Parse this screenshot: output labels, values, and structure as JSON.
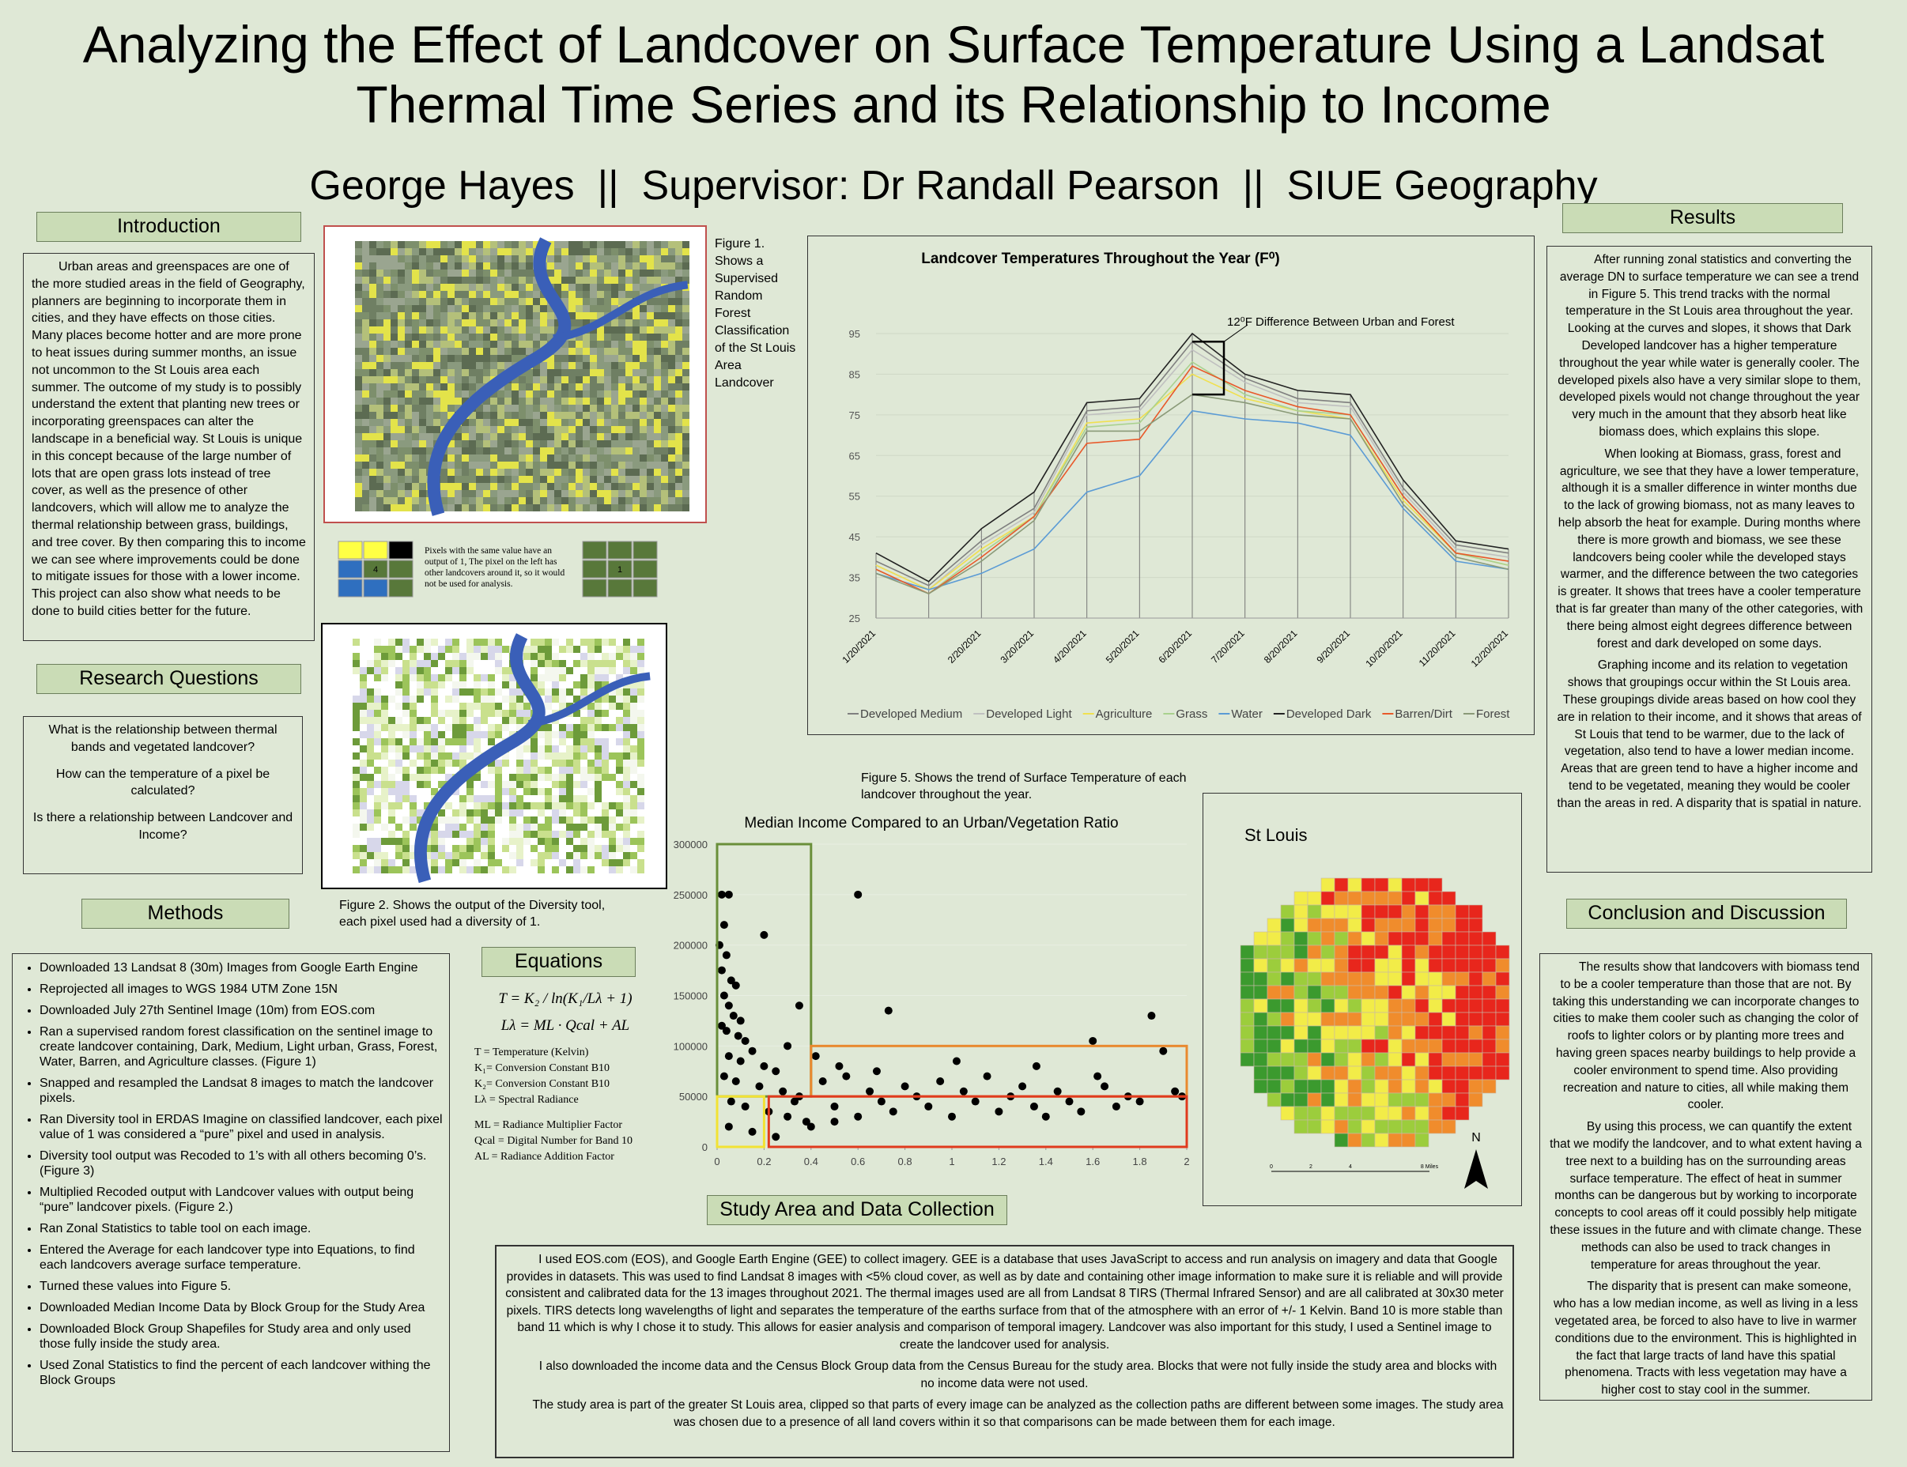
{
  "header": {
    "title": [
      "Analyzing the Effect of Landcover on Surface Temperature Using a Landsat",
      "Thermal Time Series and its Relationship to Income"
    ],
    "authors": "George Hayes  ||  Supervisor: Dr Randall Pearson  ||  SIUE Geography"
  },
  "introduction": {
    "heading": "Introduction",
    "text": "Urban areas and greenspaces are one of the more studied areas in the field of Geography, planners are beginning to incorporate them in cities, and they have effects on those cities. Many places become hotter and are more prone to heat issues during summer months, an issue not uncommon to the St Louis area each summer. The outcome of my study is to possibly understand the extent that planting new trees or incorporating greenspaces can alter the landscape in a beneficial way. St Louis is unique in this concept because of the large number of lots that are open grass lots instead of tree cover, as well as the presence of other landcovers, which will allow me to analyze the thermal relationship between grass, buildings, and tree cover. By then comparing this to income we can see where improvements could be done to mitigate issues for those with a lower income. This project can also show what needs to be done to build cities better for the future."
  },
  "research_questions": {
    "heading": "Research Questions",
    "items": [
      "What is the relationship between thermal bands and vegetated landcover?",
      "How can the temperature of a pixel be calculated?",
      "Is there a relationship between Landcover and Income?"
    ]
  },
  "methods": {
    "heading": "Methods",
    "items": [
      "Downloaded 13 Landsat 8 (30m) Images from Google Earth Engine",
      "Reprojected all images to WGS 1984 UTM Zone 15N",
      "Downloaded July 27th Sentinel Image (10m) from EOS.com",
      "Ran a supervised random forest classification on the sentinel image to create landcover containing, Dark, Medium, Light urban, Grass, Forest, Water, Barren, and Agriculture classes. (Figure 1)",
      "Snapped and resampled the Landsat 8 images to match the landcover pixels.",
      "Ran Diversity tool in ERDAS Imagine on classified landcover, each pixel value of 1 was considered a “pure” pixel and used in analysis.",
      "Diversity tool output was Recoded to 1’s with all others becoming 0’s. (Figure 3)",
      "Multiplied Recoded output with Landcover values with output being “pure” landcover pixels. (Figure 2.)",
      "Ran Zonal Statistics to table tool on each image.",
      "Entered the Average for each landcover type into Equations, to find each landcovers average surface temperature.",
      "Turned these values into Figure 5.",
      "Downloaded Median Income Data by Block Group for the Study Area",
      "Downloaded Block Group Shapefiles for Study area and only used those fully inside the study area.",
      "Used Zonal Statistics to find the percent of each landcover withing the Block Groups"
    ]
  },
  "figure1": {
    "caption": "Figure 1. Shows a Supervised Random Forest Classification of the St Louis Area Landcover"
  },
  "diversity": {
    "left_cell": "4",
    "note": "Pixels with the same value have an output of 1, The pixel on the left has other landcovers around it, so it would not be used for analysis.",
    "right_cell": "1"
  },
  "figure2": {
    "caption": "Figure 2. Shows the output of the Diversity tool, each pixel used had a diversity of 1."
  },
  "equations": {
    "heading": "Equations",
    "formulas": [
      "T = K₂ / ln(K₁/Lλ + 1)",
      "Lλ = ML · Qcal + AL"
    ],
    "legend": [
      "T = Temperature (Kelvin)",
      "K₁= Conversion Constant B10",
      "K₂= Conversion Constant B10",
      "Lλ = Spectral Radiance",
      "ML = Radiance Multiplier Factor",
      "Qcal = Digital Number for Band 10",
      "AL = Radiance Addition Factor"
    ]
  },
  "chart_data": [
    {
      "type": "line",
      "title": "Landcover Temperatures Throughout the Year (F⁰)",
      "annotation": "12⁰F Difference Between Urban and Forest",
      "categories": [
        "1/20/2021",
        null,
        "2/20/2021",
        "3/20/2021",
        "4/20/2021",
        "5/20/2021",
        "6/20/2021",
        "7/20/2021",
        "8/20/2021",
        "9/20/2021",
        "10/20/2021",
        "11/20/2021",
        "12/20/2021"
      ],
      "ylim": [
        25,
        95
      ],
      "yticks": [
        25,
        35,
        45,
        55,
        65,
        75,
        85,
        95
      ],
      "grid": true,
      "series": [
        {
          "name": "Developed Medium",
          "color": "#7f7f7f",
          "values": [
            39,
            33,
            44,
            52,
            76,
            77,
            93,
            84,
            79,
            78,
            57,
            43,
            41
          ]
        },
        {
          "name": "Developed Light",
          "color": "#c0c0c0",
          "values": [
            38,
            32,
            43,
            51,
            75,
            76,
            91,
            83,
            78,
            77,
            56,
            42,
            40
          ]
        },
        {
          "name": "Agriculture",
          "color": "#f0e050",
          "values": [
            38,
            32,
            42,
            50,
            73,
            74,
            85,
            79,
            76,
            74,
            54,
            41,
            38
          ]
        },
        {
          "name": "Grass",
          "color": "#a9d18e",
          "values": [
            37,
            31,
            41,
            50,
            72,
            73,
            88,
            80,
            76,
            75,
            55,
            41,
            38
          ]
        },
        {
          "name": "Water",
          "color": "#5b9bd5",
          "values": [
            36,
            32,
            36,
            42,
            56,
            60,
            76,
            74,
            73,
            70,
            52,
            39,
            37
          ]
        },
        {
          "name": "Developed Dark",
          "color": "#222222",
          "values": [
            41,
            34,
            47,
            56,
            78,
            79,
            95,
            85,
            81,
            80,
            59,
            44,
            42
          ]
        },
        {
          "name": "Barren/Dirt",
          "color": "#e8592a",
          "values": [
            37,
            31,
            40,
            50,
            68,
            69,
            87,
            81,
            77,
            75,
            55,
            41,
            39
          ]
        },
        {
          "name": "Forest",
          "color": "#8a9a78",
          "values": [
            36,
            31,
            39,
            49,
            71,
            71,
            80,
            78,
            75,
            74,
            53,
            40,
            37
          ]
        }
      ],
      "caption": "Figure 5. Shows the trend of Surface Temperature of each landcover throughout the year."
    },
    {
      "type": "scatter",
      "title": "Median Income Compared to an Urban/Vegetation Ratio",
      "color": "#000000",
      "xlim": [
        0,
        2
      ],
      "xticks": [
        0,
        0.2,
        0.4,
        0.6,
        0.8,
        1,
        1.2,
        1.4,
        1.6,
        1.8,
        2
      ],
      "ylim": [
        0,
        300000
      ],
      "yticks": [
        0,
        50000,
        100000,
        150000,
        200000,
        250000,
        300000
      ],
      "regions": [
        {
          "color": "#6a8f3a",
          "xlim": [
            0,
            0.4
          ],
          "ylim": [
            50000,
            300000
          ]
        },
        {
          "color": "#e9892f",
          "xlim": [
            0.4,
            2
          ],
          "ylim": [
            50000,
            100000
          ]
        },
        {
          "color": "#e03a1e",
          "xlim": [
            0.22,
            2
          ],
          "ylim": [
            0,
            50000
          ]
        },
        {
          "color": "#f2e234",
          "xlim": [
            0,
            0.2
          ],
          "ylim": [
            0,
            50000
          ]
        }
      ],
      "x": [
        0.02,
        0.05,
        0.03,
        0.01,
        0.04,
        0.02,
        0.06,
        0.08,
        0.03,
        0.05,
        0.07,
        0.1,
        0.02,
        0.04,
        0.09,
        0.12,
        0.2,
        0.6,
        0.73,
        0.35,
        0.3,
        0.15,
        0.05,
        0.1,
        0.2,
        0.25,
        0.03,
        0.08,
        0.18,
        0.28,
        0.35,
        0.06,
        0.12,
        0.22,
        0.3,
        0.38,
        0.05,
        0.15,
        0.25,
        0.33,
        0.45,
        0.5,
        0.55,
        0.6,
        0.65,
        0.7,
        0.75,
        0.8,
        0.85,
        0.9,
        0.95,
        1.0,
        1.05,
        1.1,
        1.15,
        1.2,
        1.25,
        1.3,
        1.35,
        1.4,
        1.45,
        1.5,
        1.55,
        1.6,
        1.65,
        1.7,
        1.75,
        1.8,
        1.85,
        1.9,
        1.95,
        1.98,
        0.42,
        0.52,
        0.68,
        1.02,
        1.36,
        1.62,
        0.4,
        0.5
      ],
      "values": [
        250000,
        250000,
        220000,
        200000,
        190000,
        175000,
        165000,
        160000,
        150000,
        140000,
        130000,
        125000,
        120000,
        115000,
        110000,
        105000,
        210000,
        250000,
        135000,
        140000,
        100000,
        95000,
        90000,
        85000,
        80000,
        75000,
        70000,
        65000,
        60000,
        55000,
        50000,
        45000,
        40000,
        35000,
        30000,
        25000,
        20000,
        15000,
        10000,
        45000,
        65000,
        40000,
        70000,
        30000,
        55000,
        45000,
        35000,
        60000,
        50000,
        40000,
        65000,
        30000,
        55000,
        45000,
        70000,
        35000,
        50000,
        60000,
        40000,
        30000,
        55000,
        45000,
        35000,
        105000,
        60000,
        40000,
        50000,
        45000,
        130000,
        95000,
        55000,
        50000,
        90000,
        80000,
        75000,
        85000,
        80000,
        70000,
        20000,
        25000
      ]
    }
  ],
  "map": {
    "title": "St Louis",
    "north": "N",
    "scale_labels": [
      "0",
      "2",
      "4",
      "8 Miles"
    ]
  },
  "results": {
    "heading": "Results",
    "paragraphs": [
      "After running zonal statistics and converting the average DN to surface temperature we can see a trend in Figure 5. This trend tracks with the normal temperature in the St Louis area throughout the year. Looking at the curves and slopes, it shows that Dark Developed landcover has a higher temperature throughout the year while water is generally cooler. The developed pixels also have a very similar slope to them, developed pixels would not change throughout the year very much in the amount that they absorb heat like biomass does, which explains this slope.",
      "When looking at Biomass, grass, forest and agriculture, we see that they have a lower temperature, although it is a smaller difference in winter months due to the lack of growing biomass, not as many leaves to help absorb the heat for example. During months where there is more growth and biomass, we see these landcovers being cooler while the developed stays warmer, and the difference between the two categories is greater. It shows that trees have a cooler temperature that is far greater than many of the other categories, with there being almost eight degrees difference between forest and dark developed on some days.",
      "Graphing income and its relation to vegetation shows that groupings occur within the St Louis area. These groupings divide areas based on how cool they are in relation to their income, and it shows that areas of St Louis that tend to be warmer, due to the lack of vegetation, also tend to have a lower median income. Areas that are green tend to have a higher income and tend to be vegetated, meaning they would be cooler than the areas in red. A disparity that is spatial in nature."
    ]
  },
  "conclusion": {
    "heading": "Conclusion and Discussion",
    "paragraphs": [
      "The results show that landcovers with biomass tend to be a cooler temperature than those that are not. By taking this understanding we can incorporate changes to cities to make them cooler such as changing the color of roofs to lighter colors or by planting more trees and having green spaces nearby buildings to help provide a cooler environment to spend time. Also providing recreation and nature to cities, all while making them cooler.",
      "By using this process, we can quantify the extent that we modify the landcover, and to what extent having a tree next to a building has on the surrounding areas surface temperature. The effect of heat in summer months can be dangerous but by working to incorporate concepts to cool areas off it could possibly help mitigate these issues in the future and with climate change. These methods can also be used to track changes in temperature for areas throughout the year.",
      "The disparity that is present can make someone, who has a low median income, as well as living in a less vegetated area, be forced to also have to live in warmer conditions due to the environment. This is highlighted in the fact that large tracts of land have this spatial phenomena. Tracts with less vegetation may have a higher cost to stay cool in the summer."
    ]
  },
  "study_area": {
    "heading": "Study Area and Data Collection",
    "paragraphs": [
      "I used EOS.com (EOS), and Google Earth Engine (GEE) to collect imagery. GEE is a database that uses JavaScript to access and run analysis on imagery and data that Google provides in datasets. This was used to find Landsat 8 images with <5% cloud cover, as well as by date and containing other image information to make sure it is reliable and will provide consistent and calibrated data for the 13 images throughout 2021. The thermal images used are all from Landsat 8 TIRS (Thermal Infrared Sensor) and are all calibrated at 30x30 meter pixels. TIRS detects long wavelengths of light and separates the temperature of the earths surface from that of the atmosphere with an error of +/- 1 Kelvin. Band 10 is more stable than band 11 which is why I chose it to study. This allows for easier analysis and comparison of temporal imagery. Landcover was also important for this study, I used a Sentinel image to create the landcover used for analysis.",
      "I also downloaded the income data and the Census Block Group data from the Census Bureau for the study area. Blocks that were not fully inside the study area and blocks with no income data were not used.",
      "The study area is part of the greater St Louis area, clipped so that parts of every image can be analyzed as the collection paths are different between some images. The study area was chosen due to a presence of all land covers within it so that comparisons can be made between them for each image."
    ]
  }
}
